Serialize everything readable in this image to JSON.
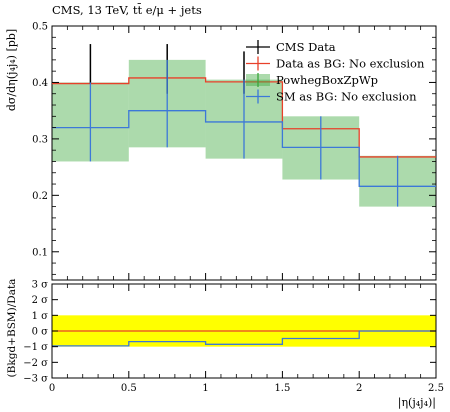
{
  "chart_data": [
    {
      "type": "line",
      "panel": "main",
      "title": "CMS, 13 TeV, tt̄ e/μ + jets",
      "ylabel": "dσ/dη(j₄j₄) [pb]",
      "xlabel": "",
      "xlim": [
        0,
        2.5
      ],
      "ylim": [
        0.05,
        0.5
      ],
      "x_ticks": [
        0,
        0.5,
        1,
        1.5,
        2,
        2.5
      ],
      "y_ticks": [
        0.1,
        0.2,
        0.3,
        0.4,
        0.5
      ],
      "y_tick_labels": [
        "0.1",
        "0.2",
        "0.3",
        "0.4",
        "0.5"
      ],
      "bins": [
        [
          0,
          0.5
        ],
        [
          0.5,
          1.0
        ],
        [
          1.0,
          1.5
        ],
        [
          1.5,
          2.0
        ],
        [
          2.0,
          2.5
        ]
      ],
      "legend_position": "top-right",
      "series": [
        {
          "name": "CMS Data",
          "color": "#000000",
          "values": [
            0.398,
            0.408,
            0.401,
            0.318,
            0.268
          ],
          "err_low": [
            0.398,
            0.38,
            0.38,
            0.318,
            0.268
          ],
          "err_high": [
            0.468,
            0.468,
            0.455,
            0.318,
            0.268
          ]
        },
        {
          "name": "Data as BG: No exclusion",
          "color": "#e8402a",
          "values": [
            0.398,
            0.408,
            0.401,
            0.318,
            0.268
          ]
        },
        {
          "name": "PowhegBoxZpWp",
          "color": "#3aa63a",
          "band_low": [
            0.26,
            0.285,
            0.265,
            0.228,
            0.18
          ],
          "band_high": [
            0.4,
            0.44,
            0.405,
            0.34,
            0.27
          ]
        },
        {
          "name": "SM as BG: No exclusion",
          "color": "#3c78d8",
          "values": [
            0.32,
            0.35,
            0.33,
            0.285,
            0.216
          ],
          "err_low": [
            0.26,
            0.285,
            0.265,
            0.228,
            0.18
          ],
          "err_high": [
            0.4,
            0.44,
            0.405,
            0.34,
            0.27
          ]
        }
      ]
    },
    {
      "type": "line",
      "panel": "ratio",
      "ylabel": "(Bkgd+BSM)/Data",
      "xlabel": "|η(j₄j₄)|",
      "xlim": [
        0,
        2.5
      ],
      "ylim": [
        -3,
        3
      ],
      "x_ticks": [
        0,
        0.5,
        1,
        1.5,
        2,
        2.5
      ],
      "x_tick_labels": [
        "0",
        "0.5",
        "1",
        "1.5",
        "2",
        "2.5"
      ],
      "y_ticks": [
        -3,
        -2,
        -1,
        0,
        1,
        2,
        3
      ],
      "y_tick_labels": [
        "−3 σ",
        "−2 σ",
        "−1 σ",
        "0 σ",
        "1 σ",
        "2 σ",
        "3 σ"
      ],
      "band": {
        "color": "#ffff00",
        "low": -1,
        "high": 1
      },
      "series": [
        {
          "name": "Data as BG",
          "color": "#e8402a",
          "values": [
            0,
            0,
            0,
            0,
            0
          ]
        },
        {
          "name": "SM as BG",
          "color": "#3c78d8",
          "values": [
            -0.95,
            -0.68,
            -0.85,
            -0.48,
            0.0
          ]
        }
      ]
    }
  ]
}
